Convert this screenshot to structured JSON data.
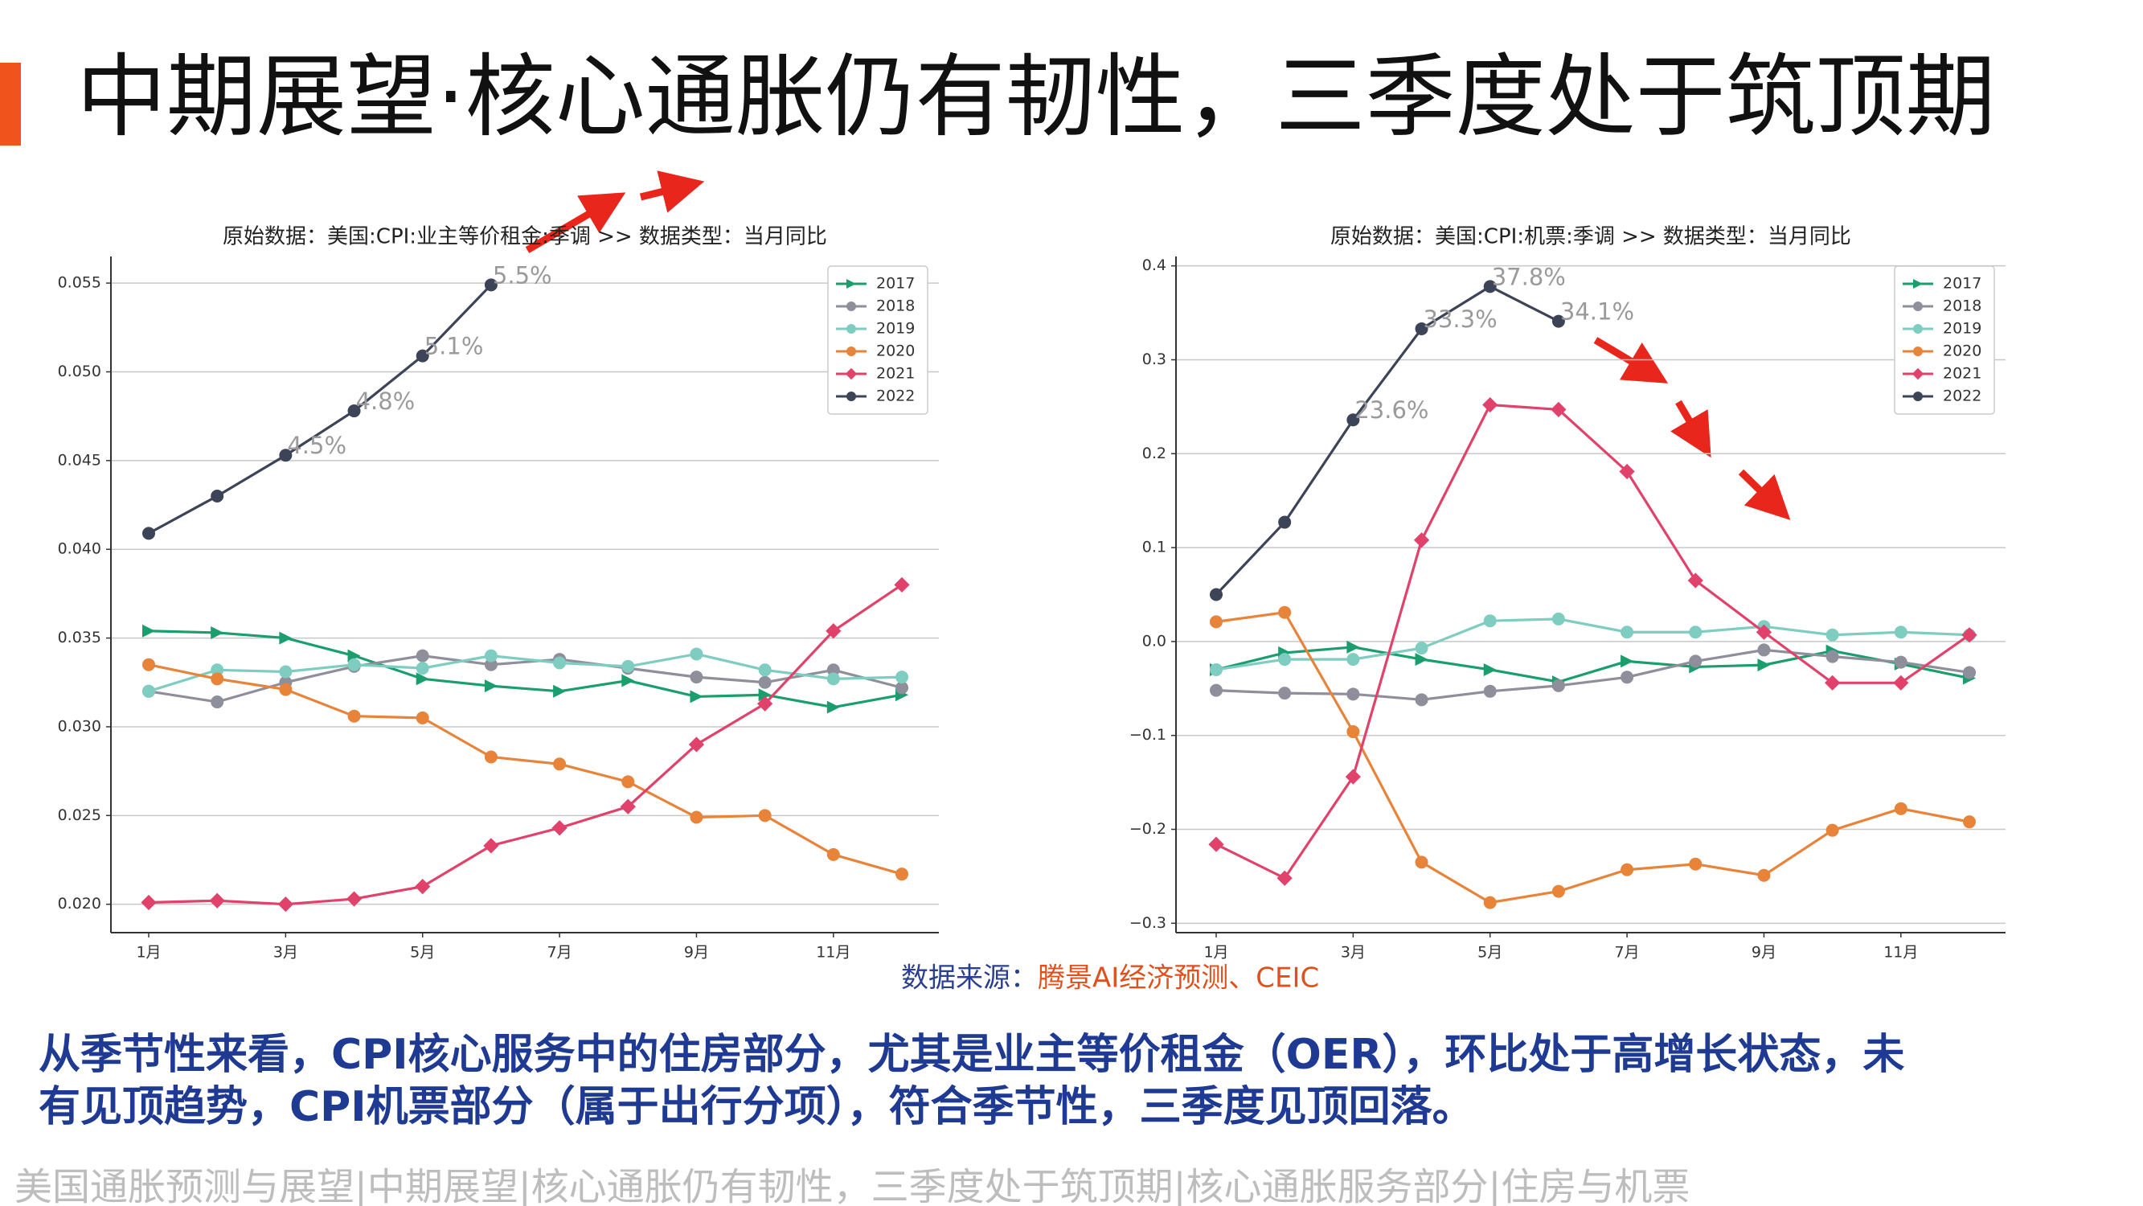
{
  "slide_title": "中期展望·核心通胀仍有韧性，三季度处于筑顶期",
  "source_label": "数据来源：",
  "source_text": "腾景AI经济预测、CEIC",
  "body": [
    "从季节性来看，CPI核心服务中的住房部分，尤其是业主等价租金（OER），环比处于高增长状态，未",
    "有见顶趋势，CPI机票部分（属于出行分项），符合季节性，三季度见顶回落。"
  ],
  "footer": "美国通胀预测与展望|中期展望|核心通胀仍有韧性，三季度处于筑顶期|核心通胀服务部分|住房与机票",
  "chart_data": [
    {
      "type": "line",
      "title": "原始数据：美国:CPI:业主等价租金:季调 >> 数据类型：当月同比",
      "categories": [
        "1月",
        null,
        "3月",
        null,
        "5月",
        null,
        "7月",
        null,
        "9月",
        null,
        "11月",
        null
      ],
      "ylim": [
        0.0184,
        0.0565
      ],
      "yticks": [
        {
          "value": 0.02,
          "label": "0.020"
        },
        0.025,
        {
          "value": 0.03,
          "label": "0.030"
        },
        0.035,
        {
          "value": 0.04,
          "label": "0.040"
        },
        0.045,
        {
          "value": 0.05,
          "label": "0.050"
        },
        0.055
      ],
      "grid": true,
      "legend": "upper right",
      "series": [
        {
          "name": "2017",
          "color": "#1a9e6e",
          "marker": "triangle",
          "values": [
            0.0354,
            0.0353,
            0.035,
            0.034,
            0.0327,
            0.0323,
            0.032,
            0.0326,
            0.0317,
            0.0318,
            0.0311,
            0.0318
          ]
        },
        {
          "name": "2018",
          "color": "#8f8f9c",
          "marker": "circle",
          "values": [
            0.032,
            0.0314,
            0.0325,
            0.0334,
            0.034,
            0.0335,
            0.0338,
            0.0333,
            0.0328,
            0.0325,
            0.0332,
            0.0322
          ]
        },
        {
          "name": "2019",
          "color": "#7ecdc0",
          "marker": "circle",
          "values": [
            0.032,
            0.0332,
            0.0331,
            0.0335,
            0.0333,
            0.034,
            0.0336,
            0.0334,
            0.0341,
            0.0332,
            0.0327,
            0.0328
          ]
        },
        {
          "name": "2020",
          "color": "#e8833a",
          "marker": "circle",
          "values": [
            0.0335,
            0.0327,
            0.0321,
            0.0306,
            0.0305,
            0.0283,
            0.0279,
            0.0269,
            0.0249,
            0.025,
            0.0228,
            0.0217
          ]
        },
        {
          "name": "2021",
          "color": "#e0426b",
          "marker": "diamond",
          "values": [
            0.0201,
            0.0202,
            0.02,
            0.0203,
            0.021,
            0.0233,
            0.0243,
            0.0255,
            0.029,
            0.0313,
            0.0354,
            0.038
          ]
        },
        {
          "name": "2022",
          "color": "#3d4458",
          "marker": "circle",
          "values": [
            0.0409,
            0.043,
            0.0453,
            0.0478,
            0.0509,
            0.0549,
            null,
            null,
            null,
            null,
            null,
            null
          ],
          "value_labels": [
            null,
            null,
            "4.5%",
            "4.8%",
            "5.1%",
            "5.5%",
            null,
            null,
            null,
            null,
            null,
            null
          ]
        }
      ]
    },
    {
      "type": "line",
      "title": "原始数据：美国:CPI:机票:季调 >> 数据类型：当月同比",
      "categories": [
        "1月",
        null,
        "3月",
        null,
        "5月",
        null,
        "7月",
        null,
        "9月",
        null,
        "11月",
        null
      ],
      "ylim": [
        -0.31,
        0.41
      ],
      "yticks": [
        {
          "value": -0.3,
          "label": "−0.3"
        },
        {
          "value": -0.2,
          "label": "−0.2"
        },
        {
          "value": -0.1,
          "label": "−0.1"
        },
        {
          "value": 0,
          "label": "0.0"
        },
        0.1,
        0.2,
        0.3,
        0.4
      ],
      "grid": true,
      "legend": "upper right",
      "series": [
        {
          "name": "2017",
          "color": "#1a9e6e",
          "marker": "triangle",
          "values": [
            -0.03,
            -0.012,
            -0.006,
            -0.019,
            -0.03,
            -0.043,
            -0.021,
            -0.027,
            -0.025,
            -0.01,
            -0.024,
            -0.039
          ]
        },
        {
          "name": "2018",
          "color": "#8f8f9c",
          "marker": "circle",
          "values": [
            -0.052,
            -0.055,
            -0.056,
            -0.062,
            -0.053,
            -0.047,
            -0.038,
            -0.021,
            -0.009,
            -0.016,
            -0.022,
            -0.033
          ]
        },
        {
          "name": "2019",
          "color": "#7ecdc0",
          "marker": "circle",
          "values": [
            -0.03,
            -0.019,
            -0.019,
            -0.007,
            0.022,
            0.024,
            0.01,
            0.01,
            0.016,
            0.007,
            0.01,
            0.007
          ]
        },
        {
          "name": "2020",
          "color": "#e8833a",
          "marker": "circle",
          "values": [
            0.021,
            0.031,
            -0.096,
            -0.235,
            -0.278,
            -0.266,
            -0.243,
            -0.237,
            -0.249,
            -0.201,
            -0.178,
            -0.192
          ]
        },
        {
          "name": "2021",
          "color": "#e0426b",
          "marker": "diamond",
          "values": [
            -0.216,
            -0.252,
            -0.144,
            0.108,
            0.252,
            0.247,
            0.181,
            0.065,
            0.01,
            -0.044,
            -0.044,
            0.007
          ]
        },
        {
          "name": "2022",
          "color": "#3d4458",
          "marker": "circle",
          "values": [
            0.05,
            0.127,
            0.236,
            0.333,
            0.378,
            0.341,
            null,
            null,
            null,
            null,
            null,
            null
          ],
          "value_labels": [
            null,
            null,
            "23.6%",
            "33.3%",
            "37.8%",
            "34.1%",
            null,
            null,
            null,
            null,
            null,
            null
          ]
        }
      ]
    }
  ]
}
